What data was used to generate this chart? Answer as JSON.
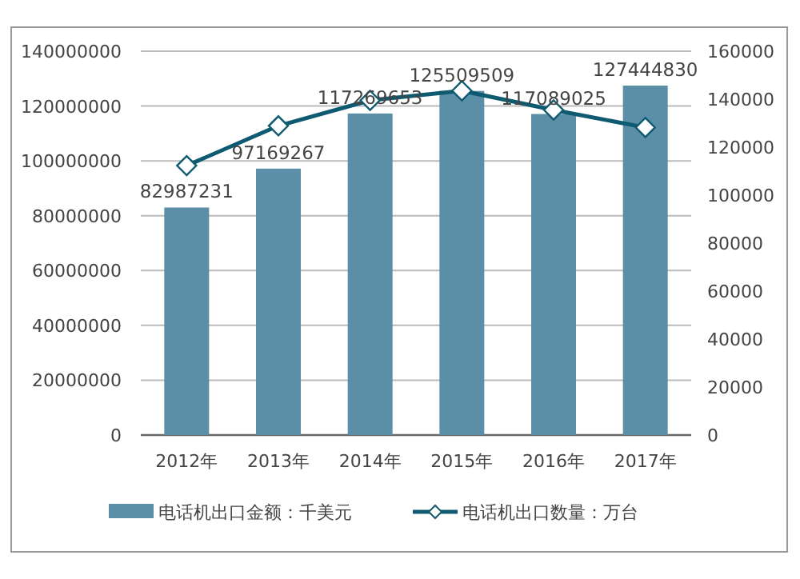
{
  "chart_data": {
    "type": "bar",
    "categories": [
      "2012年",
      "2013年",
      "2014年",
      "2015年",
      "2016年",
      "2017年"
    ],
    "series": [
      {
        "name": "电话机出口金额：千美元",
        "color": "#5b8fa8",
        "values": [
          82987231,
          97169267,
          117269653,
          125509509,
          117089025,
          127444830
        ],
        "value_labels": [
          "82987231",
          "97169267",
          "117269653",
          "125509509",
          "117089025",
          "127444830"
        ]
      },
      {
        "name": "电话机出口数量：万台",
        "type": "line",
        "axis": "y2",
        "color": "#0e5a70",
        "marker": "diamond",
        "values": [
          112300,
          128900,
          139500,
          143500,
          135500,
          128200
        ]
      }
    ],
    "ylim": [
      0,
      140000000
    ],
    "yticks": [
      0,
      20000000,
      40000000,
      60000000,
      80000000,
      100000000,
      120000000,
      140000000
    ],
    "y2lim": [
      0,
      160000
    ],
    "y2ticks": [
      0,
      20000,
      40000,
      60000,
      80000,
      100000,
      120000,
      140000,
      160000
    ],
    "grid": "y",
    "legend": "bottom"
  }
}
